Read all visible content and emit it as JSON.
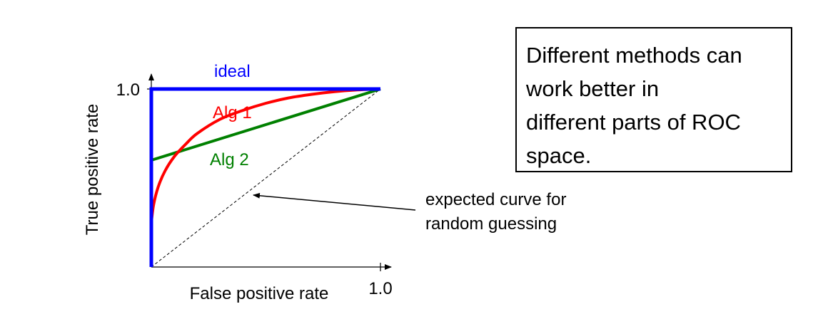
{
  "chart_data": {
    "type": "line",
    "xlabel": "False positive rate",
    "ylabel": "True positive rate",
    "xlim": [
      0,
      1
    ],
    "ylim": [
      0,
      1
    ],
    "x_ticks": [
      {
        "value": 1.0,
        "label": "1.0"
      }
    ],
    "y_ticks": [
      {
        "value": 1.0,
        "label": "1.0"
      }
    ],
    "grid": false,
    "series": [
      {
        "name": "ideal",
        "color": "#0000ff",
        "points": [
          [
            0,
            0
          ],
          [
            0,
            1
          ],
          [
            1,
            1
          ]
        ]
      },
      {
        "name": "Alg 1",
        "color": "#ff0000",
        "points": [
          [
            0,
            0.25
          ],
          [
            0.01,
            0.35
          ],
          [
            0.03,
            0.45
          ],
          [
            0.06,
            0.54
          ],
          [
            0.1,
            0.62
          ],
          [
            0.15,
            0.69
          ],
          [
            0.2,
            0.75
          ],
          [
            0.3,
            0.83
          ],
          [
            0.4,
            0.88
          ],
          [
            0.5,
            0.92
          ],
          [
            0.6,
            0.95
          ],
          [
            0.7,
            0.97
          ],
          [
            0.8,
            0.985
          ],
          [
            0.9,
            0.995
          ],
          [
            1.0,
            1.0
          ]
        ]
      },
      {
        "name": "Alg 2",
        "color": "#008000",
        "points": [
          [
            0,
            0.6
          ],
          [
            1,
            1
          ]
        ]
      },
      {
        "name": "random",
        "color": "#000000",
        "dashed": true,
        "points": [
          [
            0,
            0
          ],
          [
            1,
            1
          ]
        ]
      }
    ],
    "annotations": {
      "random_callout": [
        "expected curve for",
        "random guessing"
      ]
    }
  },
  "note": {
    "lines": [
      "Different methods can",
      "work better in",
      "different parts of ROC",
      "space."
    ]
  }
}
